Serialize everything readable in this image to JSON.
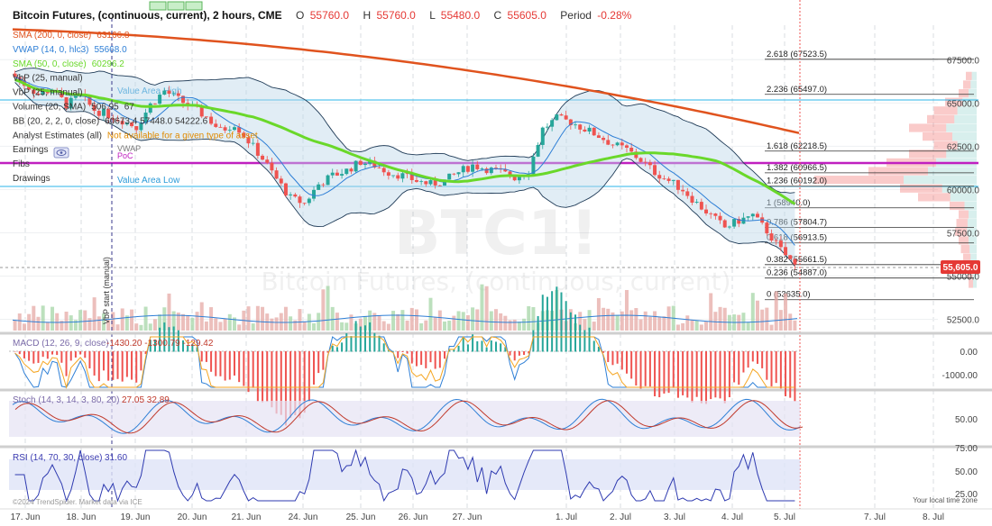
{
  "header": {
    "symbol": "Bitcoin Futures, (continuous, current), 2 hours, CME",
    "open_label": "O",
    "open": "55760.0",
    "high_label": "H",
    "high": "55760.0",
    "low_label": "L",
    "low": "55480.0",
    "close_label": "C",
    "close": "55605.0",
    "period_label": "Period",
    "period": "-0.28%"
  },
  "legend": [
    {
      "label": "SMA (200, 0, close)",
      "value": "63166.8",
      "color": "#e0531e"
    },
    {
      "label": "VWAP (14, 0, hlc3)",
      "value": "55668.0",
      "color": "#2e7fd6"
    },
    {
      "label": "SMA (50, 0, close)",
      "value": "60296.2",
      "color": "#6ad82a"
    },
    {
      "label": "VbP (25, manual)",
      "value": "",
      "color": "#333333"
    },
    {
      "label": "VbP (25, manual)",
      "value": "",
      "color": "#333333"
    },
    {
      "label": "Volume (20, SMA)",
      "value": "506.95",
      "extra": "67",
      "color": "#333333"
    },
    {
      "label": "BB (20, 2, 2, 0, close)",
      "value": "60673.4  57448.0  54222.6",
      "color": "#333333"
    },
    {
      "label": "Analyst Estimates (all)",
      "value": "Not available for a given type of asset",
      "color": "#e08a00"
    },
    {
      "label": "Earnings",
      "value": "",
      "color": "#333333"
    },
    {
      "label": "Fibs",
      "value": "",
      "color": "#333333"
    },
    {
      "label": "Drawings",
      "value": "",
      "color": "#333333"
    }
  ],
  "overlay_labels": {
    "value_area_high": "Value Area High",
    "value_area_low": "Value Area Low",
    "vwap": "VWAP",
    "poc": "PoC",
    "vbp_start": "VbP start (manual)"
  },
  "watermark": {
    "ticker": "BTC1!",
    "name": "Bitcoin Futures, (continuous, current)"
  },
  "fib_levels": [
    {
      "label": "2.618 (67523.5)",
      "price": 67523.5
    },
    {
      "label": "2.236 (65497.0)",
      "price": 65497.0
    },
    {
      "label": "1.618 (62218.5)",
      "price": 62218.5
    },
    {
      "label": "1.382 (60966.5)",
      "price": 60966.5
    },
    {
      "label": "1.236 (60192.0)",
      "price": 60192.0
    },
    {
      "label": "1 (58940.0)",
      "price": 58940.0
    },
    {
      "label": "0.786 (57804.7)",
      "price": 57804.7
    },
    {
      "label": "0.618 (56913.5)",
      "price": 56913.5
    },
    {
      "label": "0.382 (55661.5)",
      "price": 55661.5
    },
    {
      "label": "0.236 (54887.0)",
      "price": 54887.0
    },
    {
      "label": "0 (53635.0)",
      "price": 53635.0
    }
  ],
  "price_axis": {
    "ticks": [
      "67500.0",
      "65000.0",
      "62500.0",
      "60000.0",
      "57500.0",
      "55000.0",
      "52500.0"
    ],
    "tick_values": [
      67500,
      65000,
      62500,
      60000,
      57500,
      55000,
      52500
    ],
    "min": 51800,
    "max": 69700,
    "last_price": "55,605.0",
    "last_price_value": 55605
  },
  "date_axis": {
    "labels": [
      "17. Jun",
      "18. Jun",
      "19. Jun",
      "20. Jun",
      "21. Jun",
      "24. Jun",
      "25. Jun",
      "26. Jun",
      "27. Jun",
      "1. Jul",
      "2. Jul",
      "3. Jul",
      "4. Jul",
      "5. Jul",
      "7. Jul",
      "8. Jul"
    ]
  },
  "macd": {
    "label": "MACD (12, 26, 9, close)",
    "values": "-1430.20  -1300.79  -129.42",
    "ticks": [
      "0.00",
      "-1000.00"
    ]
  },
  "stoch": {
    "label": "Stoch (14, 3, 14, 3, 80, 20)",
    "values": "27.05  32.89",
    "ticks": [
      "50.00"
    ]
  },
  "rsi": {
    "label": "RSI (14, 70, 30, close)",
    "values": "31.60",
    "ticks": [
      "75.00",
      "50.00",
      "25.00"
    ]
  },
  "footer": {
    "copyright": "©2024 TrendSpider. Market data via ICE",
    "timezone": "Your local time zone"
  },
  "colors": {
    "up": "#26a69a",
    "down": "#ef5350",
    "sma200": "#e0531e",
    "sma50": "#6ad82a",
    "vwap": "#2e7fd6",
    "bb": "#1f3b57",
    "poc": "#c020c0",
    "vah": "#2bb5e8",
    "price_tag": "#e53935"
  },
  "chart_data": {
    "type": "candlestick",
    "x_dates": [
      "17. Jun",
      "18. Jun",
      "19. Jun",
      "20. Jun",
      "21. Jun",
      "24. Jun",
      "25. Jun",
      "26. Jun",
      "27. Jun",
      "1. Jul",
      "2. Jul",
      "3. Jul",
      "4. Jul",
      "5. Jul"
    ],
    "series": [
      {
        "name": "SMA (200, 0, close)",
        "last": 63166.8
      },
      {
        "name": "SMA (50, 0, close)",
        "last": 60296.2
      },
      {
        "name": "VWAP (14, 0, hlc3)",
        "last": 55668.0
      }
    ],
    "close_path": [
      66700,
      66100,
      65500,
      65800,
      64900,
      65400,
      64600,
      64300,
      64000,
      63600,
      64900,
      65700,
      65200,
      64700,
      64200,
      63400,
      63800,
      62800,
      61800,
      60600,
      59500,
      59200,
      60300,
      60800,
      61100,
      61600,
      61400,
      61000,
      60800,
      60500,
      60300,
      60500,
      61000,
      61400,
      61200,
      61000,
      60700,
      61100,
      63500,
      64100,
      63900,
      63500,
      63100,
      62600,
      62300,
      61700,
      61000,
      60500,
      60000,
      59200,
      58500,
      57800,
      58200,
      58500,
      57600,
      56500,
      55600
    ],
    "ylim": [
      51800,
      69700
    ]
  }
}
